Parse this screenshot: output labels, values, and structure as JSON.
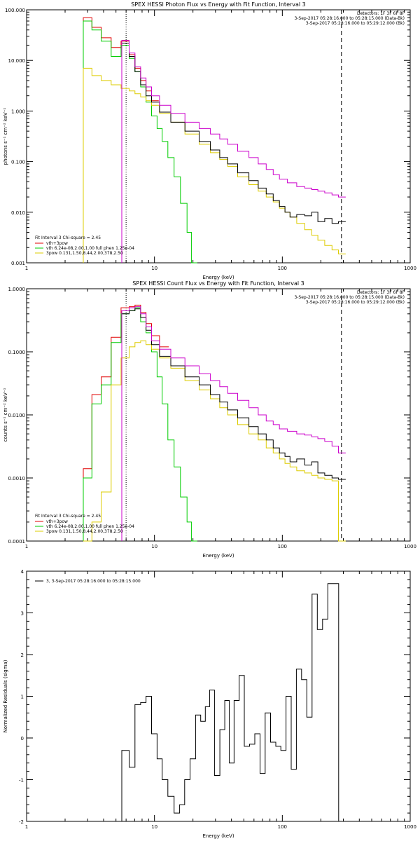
{
  "chart_data": [
    {
      "type": "line",
      "title": "SPEX HESSI Photon Flux vs Energy with Fit Function, Interval 3",
      "xlabel": "Energy (keV)",
      "ylabel": "photons s⁻¹ cm⁻² keV⁻¹",
      "xscale": "log",
      "yscale": "log",
      "xlim": [
        1,
        1000
      ],
      "ylim": [
        0.001,
        100
      ],
      "x_ticks": [
        "1",
        "10",
        "100",
        "1000"
      ],
      "y_ticks": [
        "0.001",
        "0.010",
        "0.100",
        "1.000",
        "10.000",
        "100.000"
      ],
      "info_lines": [
        "Detectors: 1F 3F 6F 8F",
        "3-Sep-2017 05:28:16.000 to 05:28:15.000 (Data-Bk)",
        "3-Sep-2017 05:28:16.000 to 05:29:12.000 (Bk)"
      ],
      "fit_text": "Fit Interval 3   Chi-square = 2.45",
      "legend": [
        {
          "label": "vth+3pow",
          "color": "#e00000"
        },
        {
          "label": "vth 6.24e-08,2.00,1.00  full phen 1.25e-04",
          "color": "#00cc00"
        },
        {
          "label": "3pow 0.131,1.50,8.44,2.00,378,2.50",
          "color": "#ddcc00"
        }
      ],
      "vlines": [
        {
          "x": 6,
          "style": "dotted"
        },
        {
          "x": 290,
          "style": "dashed"
        }
      ],
      "series": [
        {
          "color": "#e00000",
          "x": [
            3,
            3.5,
            4.2,
            5,
            6,
            6.7,
            7.4,
            8.2,
            9,
            10
          ],
          "y": [
            70,
            45,
            28,
            18,
            24,
            13,
            7,
            4,
            2.5,
            1.6
          ]
        },
        {
          "color": "#00cc00",
          "x": [
            3,
            3.5,
            4.2,
            5,
            6,
            6.7,
            7.4,
            8.2,
            9,
            10,
            11,
            12,
            13.5,
            15,
            17,
            19,
            20
          ],
          "y": [
            60,
            40,
            24,
            12,
            20,
            11,
            6,
            3,
            1.5,
            0.8,
            0.45,
            0.25,
            0.12,
            0.05,
            0.015,
            0.004,
            0.001
          ]
        },
        {
          "color": "#ddcc00",
          "x": [
            3,
            3.5,
            4.2,
            5,
            6,
            6.7,
            7.4,
            8.2,
            9,
            10,
            12,
            15,
            20,
            25,
            30,
            35,
            40,
            50,
            60,
            70,
            80,
            90,
            100,
            110,
            120,
            140,
            160,
            180,
            200,
            230,
            260,
            290
          ],
          "y": [
            7,
            5,
            4,
            3.3,
            2.8,
            2.5,
            2.2,
            1.9,
            1.6,
            1.3,
            0.9,
            0.6,
            0.35,
            0.22,
            0.15,
            0.11,
            0.08,
            0.05,
            0.035,
            0.026,
            0.02,
            0.016,
            0.012,
            0.01,
            0.008,
            0.006,
            0.0045,
            0.0035,
            0.0028,
            0.0022,
            0.0018,
            0.0015
          ]
        },
        {
          "color": "#000000",
          "x": [
            6,
            6.7,
            7.4,
            8.2,
            9,
            10,
            12,
            15,
            20,
            25,
            30,
            35,
            40,
            50,
            60,
            70,
            80,
            90,
            100,
            110,
            120,
            140,
            160,
            180,
            200,
            230,
            260,
            290
          ],
          "y": [
            22,
            12,
            6,
            3.3,
            2,
            1.5,
            0.95,
            0.6,
            0.4,
            0.25,
            0.17,
            0.12,
            0.09,
            0.06,
            0.042,
            0.03,
            0.023,
            0.017,
            0.013,
            0.01,
            0.008,
            0.009,
            0.0085,
            0.01,
            0.0065,
            0.0075,
            0.006,
            0.0065
          ]
        },
        {
          "color": "#cc00cc",
          "x": [
            6,
            6.7,
            7.4,
            8.2,
            9,
            10,
            12,
            15,
            20,
            25,
            30,
            35,
            40,
            50,
            60,
            70,
            80,
            90,
            100,
            120,
            140,
            160,
            180,
            200,
            230,
            260,
            290
          ],
          "y": [
            25,
            14,
            7.5,
            4.5,
            3,
            2,
            1.3,
            0.9,
            0.6,
            0.45,
            0.35,
            0.28,
            0.22,
            0.16,
            0.12,
            0.09,
            0.07,
            0.055,
            0.045,
            0.038,
            0.032,
            0.03,
            0.028,
            0.026,
            0.024,
            0.022,
            0.02
          ]
        }
      ]
    },
    {
      "type": "line",
      "title": "SPEX HESSI Count Flux vs Energy with Fit Function, Interval 3",
      "xlabel": "Energy (keV)",
      "ylabel": "counts s⁻¹ cm⁻² keV⁻¹",
      "xscale": "log",
      "yscale": "log",
      "xlim": [
        1,
        1000
      ],
      "ylim": [
        0.0001,
        1
      ],
      "x_ticks": [
        "1",
        "10",
        "100",
        "1000"
      ],
      "y_ticks": [
        "0.0001",
        "0.0010",
        "0.0100",
        "0.1000",
        "1.0000"
      ],
      "info_lines": [
        "Detectors: 1F 3F 6F 8F",
        "3-Sep-2017 05:28:16.000 to 05:28:15.000 (Data-Bk)",
        "3-Sep-2017 05:28:16.000 to 05:29:12.000 (Bk)"
      ],
      "fit_text": "Fit Interval 3   Chi-square = 2.45",
      "legend": [
        {
          "label": "vth+3pow",
          "color": "#e00000"
        },
        {
          "label": "vth 6.24e-08,2.00,1.00  full phen 1.25e-04",
          "color": "#00cc00"
        },
        {
          "label": "3pow 0.131,1.50,8.44,2.00,378,2.50",
          "color": "#ddcc00"
        }
      ],
      "vlines": [
        {
          "x": 6,
          "style": "dotted"
        },
        {
          "x": 290,
          "style": "dashed"
        }
      ],
      "series": [
        {
          "color": "#e00000",
          "x": [
            3,
            3.5,
            4.2,
            5,
            6,
            6.7,
            7.4,
            8.2,
            9,
            10,
            12
          ],
          "y": [
            0.0014,
            0.021,
            0.04,
            0.17,
            0.5,
            0.52,
            0.55,
            0.42,
            0.28,
            0.18,
            0.12
          ]
        },
        {
          "color": "#00cc00",
          "x": [
            3,
            3.5,
            4.2,
            5,
            6,
            6.7,
            7.4,
            8.2,
            9,
            10,
            11,
            12,
            13.5,
            15,
            17,
            19,
            20
          ],
          "y": [
            0.001,
            0.015,
            0.03,
            0.14,
            0.4,
            0.45,
            0.5,
            0.3,
            0.2,
            0.1,
            0.04,
            0.015,
            0.004,
            0.0015,
            0.0005,
            0.0002,
            0.0001
          ]
        },
        {
          "color": "#ddcc00",
          "x": [
            3,
            3.5,
            4.2,
            5,
            6,
            6.7,
            7.4,
            8.2,
            9,
            10,
            12,
            15,
            20,
            25,
            30,
            35,
            40,
            50,
            60,
            70,
            80,
            90,
            100,
            110,
            120,
            140,
            160,
            180,
            200,
            230,
            260,
            290
          ],
          "y": [
            0.0001,
            0.0002,
            0.0006,
            0.03,
            0.08,
            0.12,
            0.14,
            0.15,
            0.13,
            0.11,
            0.08,
            0.055,
            0.035,
            0.025,
            0.018,
            0.013,
            0.01,
            0.007,
            0.005,
            0.004,
            0.003,
            0.0025,
            0.002,
            0.0017,
            0.0015,
            0.0013,
            0.0012,
            0.0011,
            0.001,
            0.00095,
            0.0009,
            0.0001
          ]
        },
        {
          "color": "#000000",
          "x": [
            6,
            6.7,
            7.4,
            8.2,
            9,
            10,
            12,
            15,
            20,
            25,
            30,
            35,
            40,
            50,
            60,
            70,
            80,
            90,
            100,
            110,
            120,
            140,
            160,
            180,
            200,
            230,
            260,
            290
          ],
          "y": [
            0.4,
            0.45,
            0.48,
            0.35,
            0.22,
            0.13,
            0.085,
            0.06,
            0.04,
            0.03,
            0.021,
            0.016,
            0.012,
            0.009,
            0.0065,
            0.005,
            0.004,
            0.003,
            0.0025,
            0.0022,
            0.0018,
            0.002,
            0.0016,
            0.0018,
            0.0012,
            0.0011,
            0.001,
            0.00095
          ]
        },
        {
          "color": "#cc00cc",
          "x": [
            6,
            6.7,
            7.4,
            8.2,
            9,
            10,
            12,
            15,
            20,
            25,
            30,
            35,
            40,
            50,
            60,
            70,
            80,
            90,
            100,
            120,
            140,
            160,
            180,
            200,
            230,
            260,
            290
          ],
          "y": [
            0.45,
            0.5,
            0.52,
            0.4,
            0.25,
            0.15,
            0.11,
            0.08,
            0.06,
            0.045,
            0.035,
            0.028,
            0.022,
            0.017,
            0.013,
            0.01,
            0.008,
            0.007,
            0.006,
            0.0055,
            0.005,
            0.0048,
            0.0045,
            0.0042,
            0.0038,
            0.0032,
            0.0025
          ]
        }
      ]
    },
    {
      "type": "line",
      "title": "",
      "xlabel": "Energy (keV)",
      "ylabel": "Normalized Residuals (sigma)",
      "xscale": "log",
      "yscale": "linear",
      "xlim": [
        1,
        1000
      ],
      "ylim": [
        -2,
        4
      ],
      "x_ticks": [
        "1",
        "10",
        "100",
        "1000"
      ],
      "y_ticks": [
        "-2",
        "-1",
        "0",
        "1",
        "2",
        "3",
        "4"
      ],
      "legend": [
        {
          "label": "3,  3-Sep-2017 05:28:16.000 to 05:28:15.000",
          "color": "#000000"
        }
      ],
      "series": [
        {
          "color": "#000000",
          "x": [
            6,
            6.7,
            7.4,
            8.2,
            9,
            10,
            11,
            12,
            13.5,
            15,
            16.5,
            18,
            20,
            22,
            24,
            26,
            28,
            31,
            34,
            37,
            40,
            44,
            48,
            53,
            58,
            64,
            70,
            77,
            85,
            93,
            102,
            112,
            123,
            135,
            148,
            163,
            179,
            197,
            216,
            238,
            262,
            290
          ],
          "y": [
            -0.3,
            -0.7,
            0.8,
            0.85,
            1.0,
            0.1,
            -0.5,
            -1.0,
            -1.4,
            -1.8,
            -1.6,
            -1.0,
            -0.5,
            0.55,
            0.4,
            0.75,
            1.15,
            -0.9,
            0.2,
            0.9,
            -0.6,
            0.9,
            1.5,
            -0.2,
            -0.15,
            0.1,
            -0.85,
            0.6,
            -0.1,
            -0.2,
            -0.3,
            1.0,
            -0.75,
            1.65,
            1.4,
            0.5,
            3.45,
            2.6,
            2.85,
            3.7,
            3.7,
            -2.0
          ]
        }
      ]
    }
  ]
}
